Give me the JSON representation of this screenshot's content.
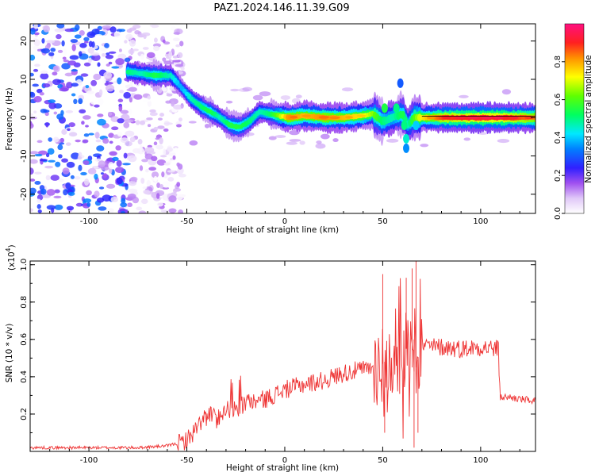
{
  "title": "PAZ1.2024.146.11.39.G09",
  "chart_data": [
    {
      "type": "heatmap",
      "xlabel": "Height of straight line (km)",
      "ylabel": "Frequency (Hz)",
      "xlim": [
        -130,
        128
      ],
      "ylim": [
        -25,
        24.5
      ],
      "x_ticks": [
        -100,
        -50,
        0,
        50,
        100
      ],
      "y_ticks": [
        -20,
        -10,
        0,
        10,
        20
      ],
      "colorbar": {
        "label": "Normalized spectral amplitude",
        "range": [
          0,
          1
        ],
        "ticks": [
          0.0,
          0.2,
          0.4,
          0.6,
          0.8
        ],
        "colors": [
          "#ffffff",
          "#d0a8f0",
          "#8a2be2",
          "#2020ff",
          "#00ccff",
          "#00ff66",
          "#88ff00",
          "#ffff00",
          "#ff8800",
          "#ff2222",
          "#ff1493"
        ]
      },
      "ridge": {
        "x": [
          -80,
          -73,
          -66,
          -58,
          -53,
          -48,
          -43,
          -38,
          -33,
          -28,
          -23,
          -18,
          -13,
          -8,
          -3,
          2,
          10,
          20,
          30,
          40,
          45,
          50,
          55,
          60,
          63,
          66,
          70,
          80,
          90,
          100,
          110,
          120,
          128
        ],
        "freq": [
          12,
          11.5,
          11,
          11,
          8,
          5,
          3,
          1.5,
          0,
          -2,
          -2.5,
          -1,
          1.5,
          1,
          0.5,
          0,
          0.5,
          0,
          0,
          0.5,
          1,
          -1,
          0,
          1,
          -2,
          0,
          0,
          0,
          0,
          0,
          0,
          0,
          0
        ],
        "amplitude": [
          0.55,
          0.5,
          0.6,
          0.5,
          0.4,
          0.5,
          0.55,
          0.6,
          0.5,
          0.6,
          0.6,
          0.55,
          0.5,
          0.55,
          0.7,
          0.9,
          0.85,
          0.9,
          0.85,
          0.8,
          0.7,
          0.55,
          0.5,
          0.6,
          0.5,
          0.65,
          0.8,
          0.95,
          0.98,
          1.0,
          1.0,
          0.95,
          0.9
        ]
      },
      "noise_region": {
        "x_range": [
          -130,
          -52
        ],
        "max_amplitude": 0.35
      }
    },
    {
      "type": "line",
      "xlabel": "Height of straight line (km)",
      "ylabel": "SNR (10 * v/v)",
      "scale_label": "(x10",
      "scale_exp": "4",
      "scale_close": ")",
      "xlim": [
        -130,
        128
      ],
      "ylim": [
        0,
        1.02
      ],
      "x_ticks": [
        -100,
        -50,
        0,
        50,
        100
      ],
      "y_ticks": [
        0.2,
        0.4,
        0.6,
        0.8,
        1.0
      ],
      "series": [
        {
          "color": "#ee3333",
          "x": [
            -130,
            -100,
            -75,
            -60,
            -52,
            -48,
            -45,
            -42,
            -38,
            -35,
            -30,
            -25,
            -20,
            -10,
            0,
            10,
            20,
            30,
            40,
            45,
            48,
            50,
            52,
            55,
            58,
            60,
            62,
            64,
            65,
            66,
            67,
            70,
            75,
            80,
            90,
            100,
            108,
            109,
            110,
            115,
            120,
            128
          ],
          "y": [
            0.02,
            0.02,
            0.02,
            0.03,
            0.05,
            0.08,
            0.13,
            0.17,
            0.2,
            0.17,
            0.23,
            0.22,
            0.26,
            0.28,
            0.33,
            0.36,
            0.38,
            0.42,
            0.44,
            0.45,
            0.46,
            0.47,
            0.49,
            0.5,
            0.52,
            0.5,
            0.55,
            0.55,
            0.45,
            0.6,
            0.45,
            0.57,
            0.56,
            0.56,
            0.55,
            0.56,
            0.55,
            0.55,
            0.29,
            0.29,
            0.28,
            0.27
          ]
        }
      ]
    }
  ]
}
